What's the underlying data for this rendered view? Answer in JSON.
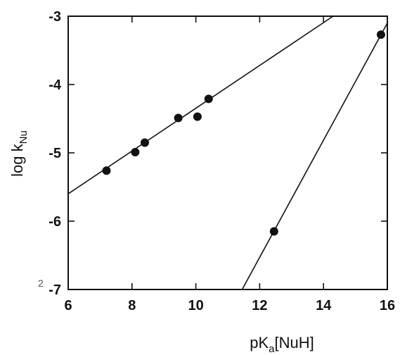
{
  "chart_data": {
    "type": "scatter",
    "title": "",
    "xlabel": {
      "main": "pK",
      "sub": "a",
      "rest": "[NuH]"
    },
    "ylabel": {
      "main": "log k",
      "sub": "Nu"
    },
    "xlim": [
      6,
      16
    ],
    "ylim": [
      -7,
      -3
    ],
    "xticks": [
      6,
      8,
      10,
      12,
      14,
      16
    ],
    "yticks": [
      -3,
      -4,
      -5,
      -6,
      -7
    ],
    "xtick_labels": [
      "6",
      "8",
      "10",
      "12",
      "14",
      "16"
    ],
    "ytick_labels": [
      "-3",
      "-4",
      "-5",
      "-6",
      "-7"
    ],
    "grid": false,
    "legend": "none",
    "colors": {
      "ink": "#111111"
    },
    "series": [
      {
        "points": [
          {
            "x": 7.2,
            "y": -5.26
          },
          {
            "x": 8.1,
            "y": -4.99
          },
          {
            "x": 8.4,
            "y": -4.85
          },
          {
            "x": 9.45,
            "y": -4.49
          },
          {
            "x": 10.05,
            "y": -4.47
          },
          {
            "x": 10.4,
            "y": -4.21
          }
        ],
        "fit_line": {
          "x_start": 6,
          "y_start": -5.6,
          "x_end": 14.3,
          "y_end": -3.0
        }
      },
      {
        "points": [
          {
            "x": 12.45,
            "y": -6.15
          },
          {
            "x": 15.8,
            "y": -3.27
          }
        ],
        "fit_line": {
          "x_start": 11.45,
          "y_start": -7.0,
          "x_end": 16.0,
          "y_end": -3.1
        }
      }
    ]
  },
  "stray_mark": "2"
}
